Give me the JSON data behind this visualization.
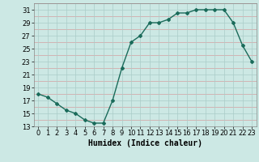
{
  "x": [
    0,
    1,
    2,
    3,
    4,
    5,
    6,
    7,
    8,
    9,
    10,
    11,
    12,
    13,
    14,
    15,
    16,
    17,
    18,
    19,
    20,
    21,
    22,
    23
  ],
  "y": [
    18,
    17.5,
    16.5,
    15.5,
    15,
    14,
    13.5,
    13.5,
    17,
    22,
    26,
    27,
    29,
    29,
    29.5,
    30.5,
    30.5,
    31,
    31,
    31,
    31,
    29,
    25.5,
    23
  ],
  "line_color": "#1a6b5a",
  "bg_color": "#cce8e4",
  "grid_minor_color": "#d4a0a0",
  "grid_major_color": "#aaccc8",
  "xlabel": "Humidex (Indice chaleur)",
  "xlim": [
    -0.5,
    23.5
  ],
  "ylim": [
    13,
    32
  ],
  "yticks": [
    13,
    15,
    17,
    19,
    21,
    23,
    25,
    27,
    29,
    31
  ],
  "xticks": [
    0,
    1,
    2,
    3,
    4,
    5,
    6,
    7,
    8,
    9,
    10,
    11,
    12,
    13,
    14,
    15,
    16,
    17,
    18,
    19,
    20,
    21,
    22,
    23
  ],
  "tick_fontsize": 6,
  "xlabel_fontsize": 7
}
